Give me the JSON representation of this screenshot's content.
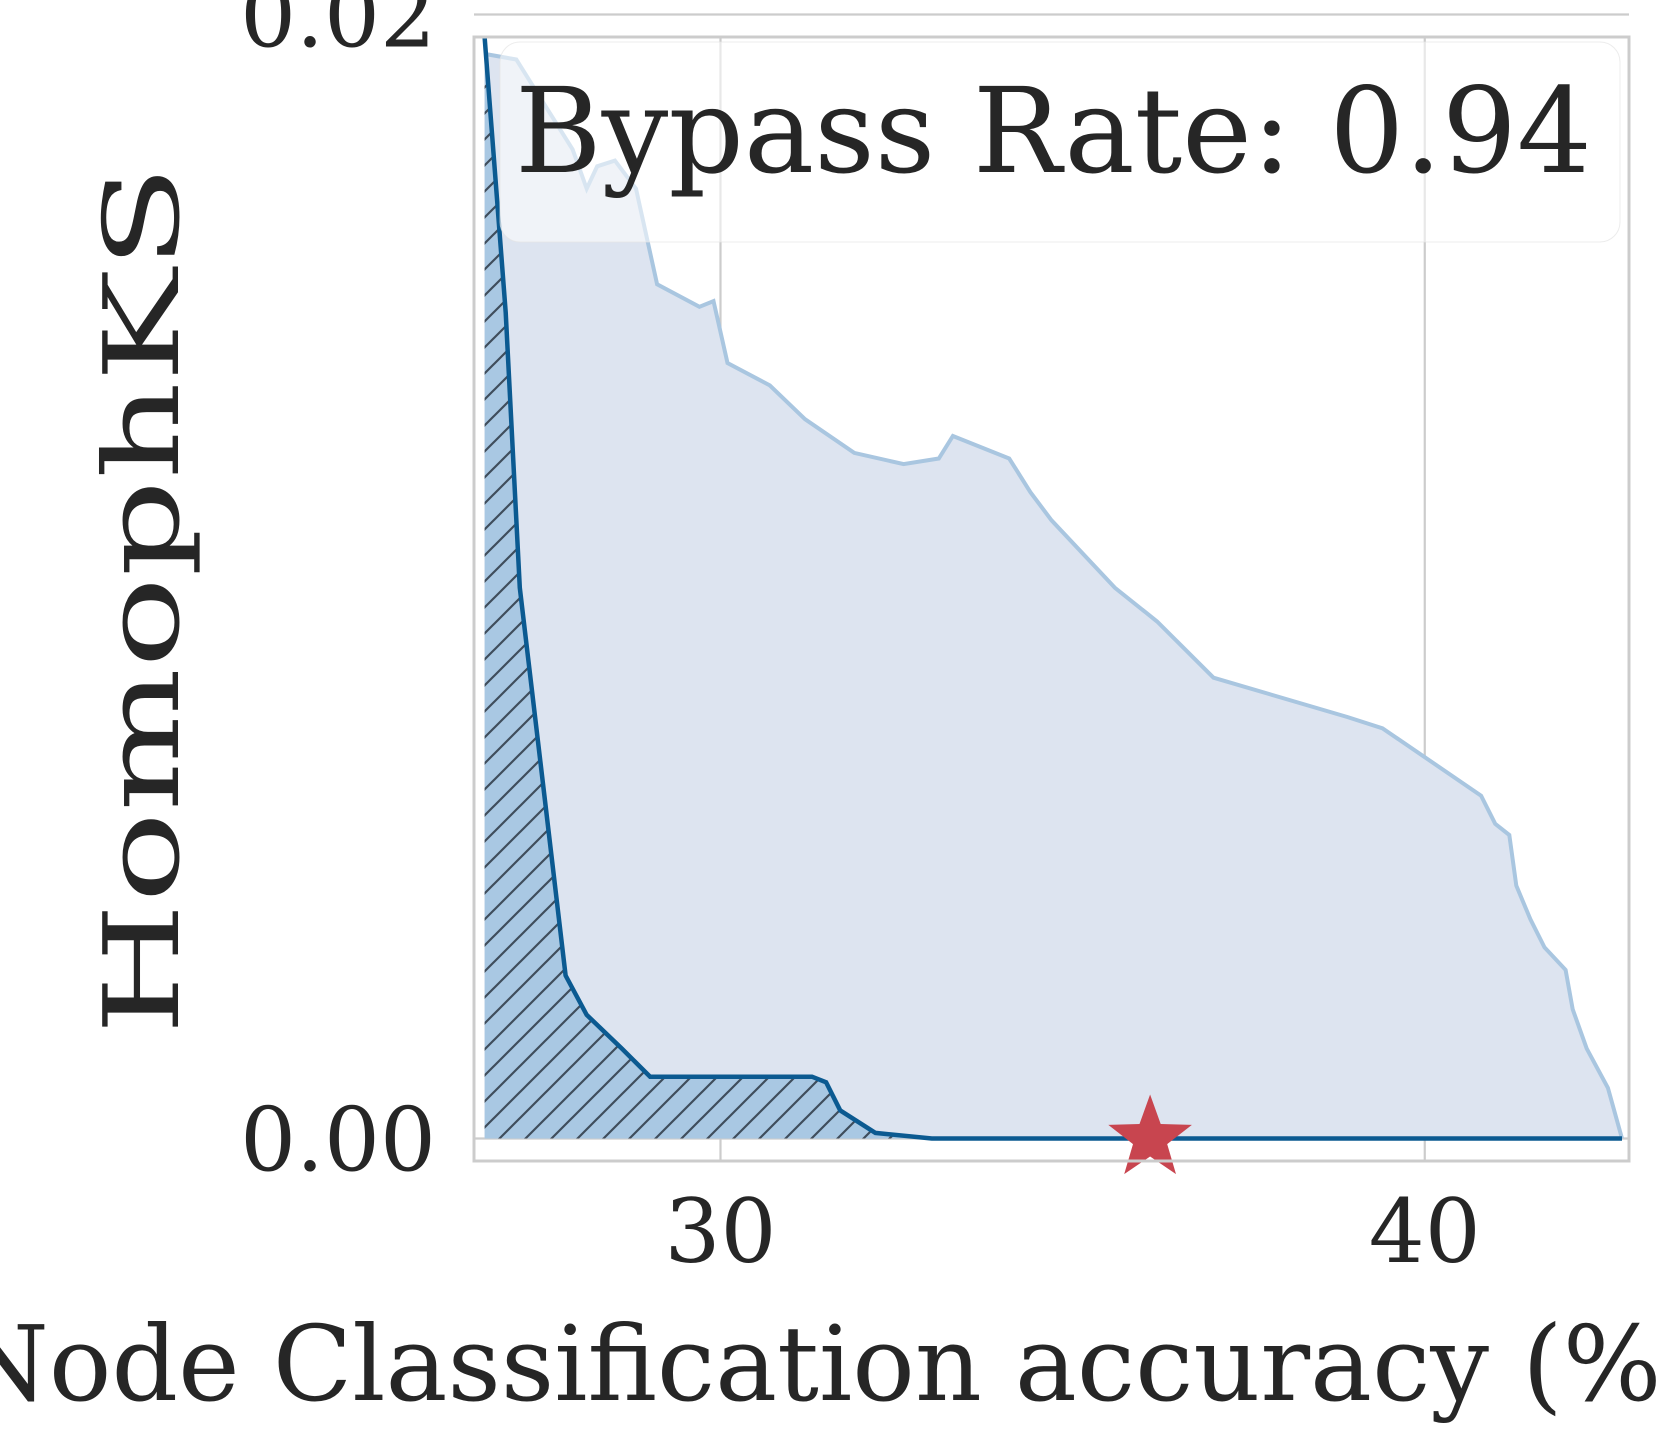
{
  "chart_data": {
    "type": "area",
    "title": "",
    "xlabel": "Node Classification accuracy (%)",
    "ylabel": "HomophKS",
    "xlim": [
      26.5,
      42.9
    ],
    "ylim": [
      -0.0004,
      0.0196
    ],
    "xticks": [
      30,
      40
    ],
    "xtick_labels": [
      "30",
      "40"
    ],
    "yticks": [
      0.0,
      0.02
    ],
    "ytick_labels": [
      "0.00",
      "0.02"
    ],
    "grid": true,
    "legend": "none",
    "annotation": {
      "text": "Bypass Rate: 0.94",
      "placement": "top-right"
    },
    "colors": {
      "outer_fill": "#dde4f0",
      "outer_line": "#a9c6e0",
      "inner_fill": "#a9c8e3",
      "inner_line": "#0b5a91",
      "marker": "#c8454f",
      "grid": "#cccccc",
      "frame": "#cccccc"
    },
    "series": [
      {
        "role": "outer-envelope",
        "x": [
          26.65,
          27.1,
          27.6,
          27.9,
          28.1,
          28.25,
          28.5,
          28.8,
          29.1,
          29.7,
          29.9,
          30.1,
          30.7,
          31.2,
          31.9,
          32.6,
          33.1,
          33.3,
          34.1,
          34.4,
          34.7,
          35.6,
          36.2,
          37.0,
          38.9,
          39.4,
          40.8,
          41.0,
          41.2,
          41.3,
          41.5,
          41.7,
          42.0,
          42.1,
          42.3,
          42.6,
          42.8
        ],
        "y": [
          0.0193,
          0.0192,
          0.0182,
          0.0176,
          0.0169,
          0.0173,
          0.0174,
          0.0169,
          0.0152,
          0.0148,
          0.0149,
          0.0138,
          0.0134,
          0.0128,
          0.0122,
          0.012,
          0.0121,
          0.0125,
          0.0121,
          0.0115,
          0.011,
          0.0098,
          0.0092,
          0.0082,
          0.0075,
          0.0073,
          0.0061,
          0.0056,
          0.0054,
          0.0045,
          0.0039,
          0.0034,
          0.003,
          0.0023,
          0.0016,
          0.0009,
          0.0
        ]
      },
      {
        "role": "inner-hatched",
        "x": [
          26.65,
          26.95,
          27.15,
          27.5,
          27.8,
          28.1,
          28.6,
          29.0,
          30.0,
          31.0,
          31.3,
          31.5,
          31.7,
          32.2,
          33.0,
          34.0,
          36.0,
          38.0,
          40.0,
          42.0,
          42.8
        ],
        "y": [
          0.0196,
          0.0147,
          0.0098,
          0.0061,
          0.0029,
          0.0022,
          0.0016,
          0.0011,
          0.0011,
          0.0011,
          0.0011,
          0.001,
          0.0005,
          0.0001,
          0.0,
          0.0,
          0.0,
          0.0,
          0.0,
          0.0,
          0.0
        ]
      }
    ],
    "marker": {
      "x": 36.1,
      "y": 0.0,
      "shape": "star"
    }
  }
}
